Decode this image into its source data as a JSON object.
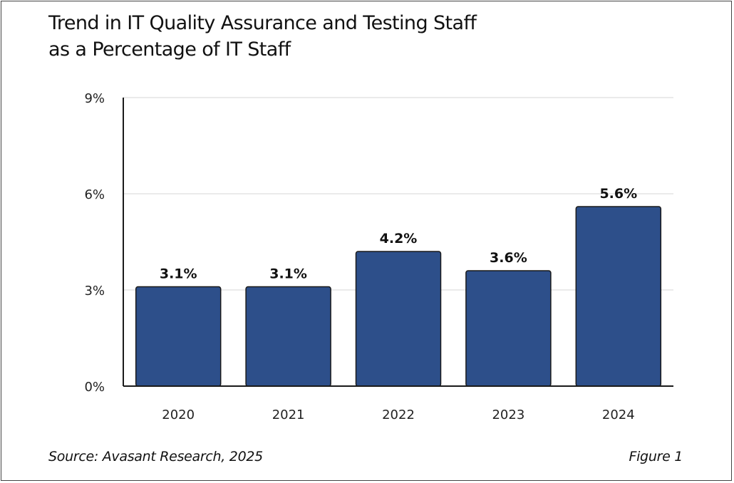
{
  "chart_data": {
    "type": "bar",
    "title_lines": [
      "Trend in  IT Quality Assurance and Testing Staff",
      "as a  Percentage of  IT Staff"
    ],
    "categories": [
      "2020",
      "2021",
      "2022",
      "2023",
      "2024"
    ],
    "values": [
      3.1,
      3.1,
      4.2,
      3.6,
      5.6
    ],
    "data_labels": [
      "3.1%",
      "3.1%",
      "4.2%",
      "3.6%",
      "5.6%"
    ],
    "ylim": [
      0,
      9
    ],
    "yticks": [
      0,
      3,
      6,
      9
    ],
    "ytick_labels": [
      "0%",
      "3%",
      "6%",
      "9%"
    ],
    "xlabel": "",
    "ylabel": "",
    "grid": true,
    "bar_color": "#2d4f8a",
    "bar_edge_color": "#1a1a1a",
    "grid_color": "#e3e3e3"
  },
  "footer": {
    "source": "Source: Avasant  Research, 2025",
    "figure": "Figure 1"
  }
}
